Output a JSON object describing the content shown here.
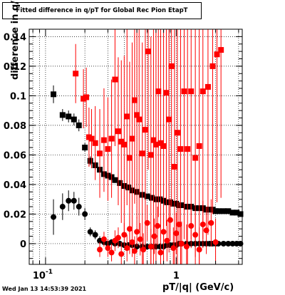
{
  "chart_data": {
    "type": "scatter",
    "title": "Fitted difference in q/pT for Global Rec Pion EtapT",
    "xlabel": "pT/|q| (GeV/c)",
    "ylabel": "difference in q/pT",
    "xscale": "log",
    "xlim": [
      0.075,
      3.2
    ],
    "ylim": [
      -0.014,
      0.145
    ],
    "x_ticks": [
      {
        "value": 0.1,
        "label": "10^{-1}"
      },
      {
        "value": 1,
        "label": "1"
      }
    ],
    "y_ticks": [
      {
        "value": 0,
        "label": "0"
      },
      {
        "value": 0.02,
        "label": "0.02"
      },
      {
        "value": 0.04,
        "label": "0.04"
      },
      {
        "value": 0.06,
        "label": "0.06"
      },
      {
        "value": 0.08,
        "label": "0.08"
      },
      {
        "value": 0.1,
        "label": "0.1"
      },
      {
        "value": 0.12,
        "label": "0.12"
      },
      {
        "value": 0.14,
        "label": "0.14"
      }
    ],
    "grid": true,
    "legend": "none",
    "series": [
      {
        "marker": "square",
        "color": "#000000",
        "x": [
          0.115,
          0.135,
          0.15,
          0.165,
          0.18,
          0.2,
          0.22,
          0.24,
          0.26,
          0.28,
          0.3,
          0.32,
          0.34,
          0.37,
          0.4,
          0.43,
          0.46,
          0.5,
          0.55,
          0.6,
          0.65,
          0.7,
          0.75,
          0.8,
          0.85,
          0.9,
          0.95,
          1.0,
          1.05,
          1.1,
          1.2,
          1.3,
          1.4,
          1.5,
          1.6,
          1.7,
          1.8,
          1.9,
          2.0,
          2.1,
          2.3,
          2.5,
          2.7,
          2.9,
          3.1
        ],
        "y": [
          0.101,
          0.087,
          0.086,
          0.084,
          0.08,
          0.065,
          0.056,
          0.053,
          0.05,
          0.047,
          0.046,
          0.045,
          0.043,
          0.041,
          0.039,
          0.038,
          0.036,
          0.035,
          0.033,
          0.032,
          0.031,
          0.03,
          0.03,
          0.029,
          0.028,
          0.028,
          0.027,
          0.027,
          0.026,
          0.026,
          0.025,
          0.025,
          0.024,
          0.024,
          0.024,
          0.023,
          0.023,
          0.023,
          0.022,
          0.022,
          0.022,
          0.022,
          0.021,
          0.021,
          0.02
        ],
        "yerr": [
          0.006,
          0.004,
          0.004,
          0.004,
          0.004,
          0.003,
          0.003,
          0.003,
          0.002,
          0.002,
          0.002,
          0.002,
          0.002,
          0.002,
          0.002,
          0.002,
          0.002,
          0.002,
          0.001,
          0.001,
          0.001,
          0.001,
          0.001,
          0.001,
          0.001,
          0.001,
          0.001,
          0.001,
          0.001,
          0.001,
          0.001,
          0.001,
          0.001,
          0.001,
          0.001,
          0.001,
          0.001,
          0.001,
          0.001,
          0.001,
          0.001,
          0.001,
          0.001,
          0.001,
          0.001
        ]
      },
      {
        "marker": "circle",
        "color": "#000000",
        "x": [
          0.115,
          0.135,
          0.15,
          0.165,
          0.18,
          0.2,
          0.22,
          0.24,
          0.26,
          0.28,
          0.3,
          0.32,
          0.34,
          0.37,
          0.4,
          0.43,
          0.46,
          0.5,
          0.55,
          0.6,
          0.65,
          0.7,
          0.75,
          0.8,
          0.85,
          0.9,
          0.95,
          1.0,
          1.05,
          1.1,
          1.2,
          1.3,
          1.4,
          1.5,
          1.6,
          1.7,
          1.8,
          1.9,
          2.0,
          2.1,
          2.3,
          2.5,
          2.7,
          2.9,
          3.1
        ],
        "y": [
          0.018,
          0.025,
          0.029,
          0.029,
          0.025,
          0.02,
          0.008,
          0.006,
          0.002,
          0.001,
          0.0,
          0.001,
          0.0,
          0.0,
          -0.001,
          -0.001,
          -0.001,
          -0.002,
          -0.002,
          -0.002,
          -0.002,
          -0.002,
          -0.002,
          -0.002,
          -0.001,
          -0.001,
          -0.001,
          -0.001,
          0.0,
          0.0,
          0.0,
          0.0,
          0.0,
          0.0,
          0.0,
          0.0,
          0.0,
          0.0,
          0.0,
          0.0,
          0.0,
          0.0,
          0.0,
          0.0,
          0.0
        ],
        "yerr": [
          0.012,
          0.009,
          0.007,
          0.006,
          0.006,
          0.004,
          0.003,
          0.003,
          0.003,
          0.002,
          0.002,
          0.002,
          0.002,
          0.002,
          0.002,
          0.002,
          0.001,
          0.001,
          0.001,
          0.001,
          0.001,
          0.001,
          0.001,
          0.001,
          0.001,
          0.001,
          0.001,
          0.001,
          0.001,
          0.001,
          0.001,
          0.001,
          0.001,
          0.001,
          0.001,
          0.001,
          0.001,
          0.001,
          0.001,
          0.001,
          0.001,
          0.001,
          0.001,
          0.001,
          0.001
        ]
      },
      {
        "marker": "square",
        "color": "#ff0000",
        "x": [
          0.17,
          0.195,
          0.205,
          0.215,
          0.225,
          0.24,
          0.26,
          0.28,
          0.3,
          0.32,
          0.34,
          0.36,
          0.38,
          0.4,
          0.42,
          0.44,
          0.46,
          0.48,
          0.5,
          0.52,
          0.55,
          0.58,
          0.61,
          0.64,
          0.67,
          0.7,
          0.73,
          0.76,
          0.8,
          0.84,
          0.88,
          0.92,
          0.97,
          1.02,
          1.08,
          1.15,
          1.22,
          1.3,
          1.4,
          1.5,
          1.6,
          1.75,
          1.9,
          2.05,
          2.2
        ],
        "y": [
          0.115,
          0.098,
          0.099,
          0.072,
          0.071,
          0.068,
          0.061,
          0.07,
          0.064,
          0.071,
          0.111,
          0.076,
          0.069,
          0.067,
          0.086,
          0.058,
          0.071,
          0.097,
          0.087,
          0.084,
          0.061,
          0.077,
          0.13,
          0.06,
          0.07,
          0.067,
          0.103,
          0.068,
          0.066,
          0.102,
          0.084,
          0.12,
          0.052,
          0.075,
          0.064,
          0.103,
          0.064,
          0.103,
          0.058,
          0.066,
          0.103,
          0.106,
          0.12,
          0.128,
          0.131
        ],
        "yerr": [
          0.02,
          0.02,
          0.02,
          0.02,
          0.02,
          0.025,
          0.03,
          0.035,
          0.035,
          0.04,
          0.045,
          0.05,
          0.055,
          0.06,
          0.06,
          0.065,
          0.065,
          0.07,
          0.07,
          0.075,
          0.075,
          0.08,
          0.08,
          0.08,
          0.085,
          0.085,
          0.085,
          0.09,
          0.09,
          0.09,
          0.09,
          0.095,
          0.095,
          0.095,
          0.095,
          0.1,
          0.1,
          0.1,
          0.1,
          0.1,
          0.1,
          0.1,
          0.1,
          0.1,
          0.1
        ]
      },
      {
        "marker": "circle",
        "color": "#ff0000",
        "x": [
          0.26,
          0.28,
          0.3,
          0.32,
          0.34,
          0.36,
          0.38,
          0.4,
          0.42,
          0.44,
          0.46,
          0.48,
          0.5,
          0.53,
          0.56,
          0.6,
          0.64,
          0.68,
          0.72,
          0.76,
          0.8,
          0.85,
          0.9,
          0.95,
          1.0,
          1.05,
          1.1,
          1.2,
          1.3,
          1.4,
          1.5,
          1.6,
          1.7,
          1.85,
          2.0
        ],
        "y": [
          -0.004,
          0.003,
          -0.003,
          -0.006,
          0.002,
          0.004,
          -0.007,
          0.006,
          -0.003,
          0.01,
          0.001,
          -0.005,
          0.008,
          0.003,
          -0.004,
          0.014,
          -0.002,
          0.005,
          0.012,
          -0.006,
          0.008,
          0.002,
          0.016,
          -0.003,
          0.007,
          0.013,
          0.0,
          -0.002,
          0.012,
          0.006,
          -0.004,
          0.013,
          0.009,
          0.014,
          0.001
        ],
        "yerr": [
          0.005,
          0.005,
          0.006,
          0.006,
          0.007,
          0.007,
          0.008,
          0.008,
          0.009,
          0.009,
          0.01,
          0.01,
          0.01,
          0.011,
          0.011,
          0.012,
          0.012,
          0.012,
          0.013,
          0.013,
          0.013,
          0.014,
          0.014,
          0.014,
          0.014,
          0.015,
          0.015,
          0.015,
          0.015,
          0.015,
          0.015,
          0.016,
          0.016,
          0.016,
          0.016
        ]
      }
    ]
  },
  "footer": {
    "timestamp": "Wed Jan 13 14:53:39 2021"
  }
}
